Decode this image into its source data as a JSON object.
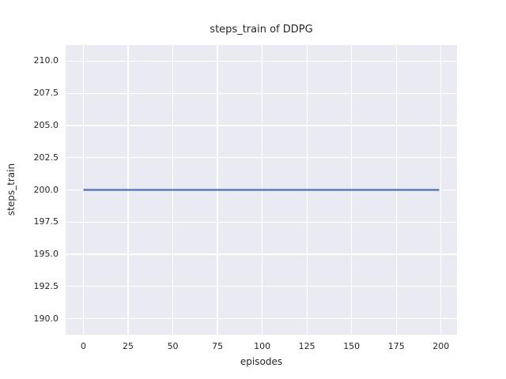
{
  "figure": {
    "background_color": "#ffffff",
    "text_color": "#262626"
  },
  "chart_data": {
    "type": "line",
    "title": "steps_train of DDPG",
    "xlabel": "episodes",
    "ylabel": "steps_train",
    "series": [
      {
        "name": "steps_train",
        "color": "#4c72b0",
        "x": [
          0,
          199
        ],
        "y": [
          200,
          200
        ],
        "note": "constant horizontal line at y=200 spanning episodes 0 to 199"
      }
    ],
    "x_ticks": [
      0,
      25,
      50,
      75,
      100,
      125,
      150,
      175,
      200
    ],
    "y_ticks": [
      210.0,
      207.5,
      205.0,
      202.5,
      200.0,
      197.5,
      195.0,
      192.5,
      190.0
    ],
    "y_tick_labels": [
      "210.0",
      "207.5",
      "205.0",
      "202.5",
      "200.0",
      "197.5",
      "195.0",
      "192.5",
      "190.0"
    ],
    "xlim": [
      -9.95,
      208.95
    ],
    "ylim": [
      188.75,
      211.25
    ],
    "grid": true,
    "legend": false,
    "plot_background": "#eaeaf2",
    "grid_color": "#ffffff",
    "line_width": 2.2
  }
}
